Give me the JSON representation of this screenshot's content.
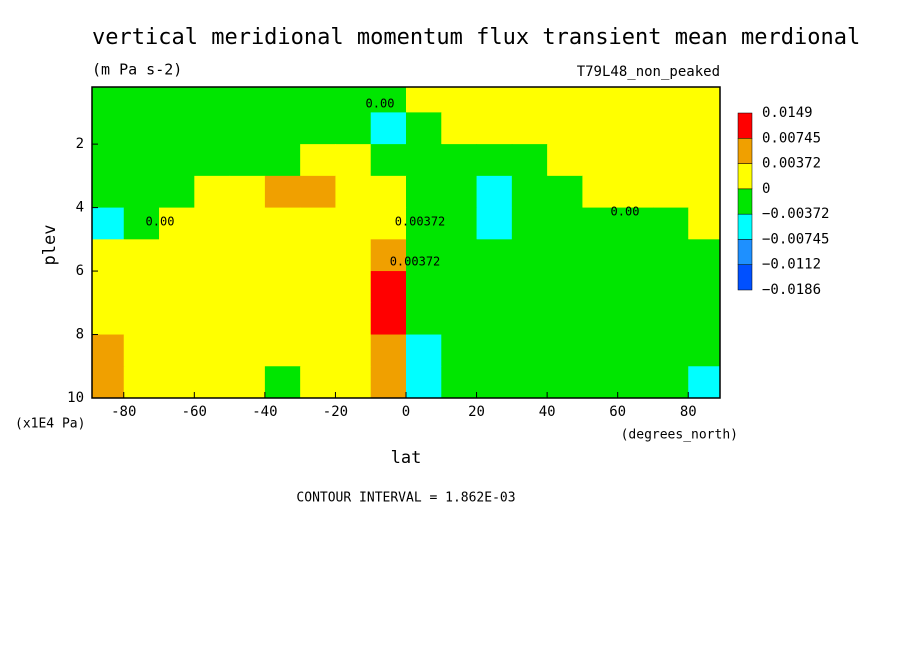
{
  "chart_data": {
    "type": "contour",
    "title": "vertical meridional momentum flux transient mean merdional",
    "subtitle": "(m Pa s-2)",
    "run_label": "T79L48_non_peaked",
    "xlabel": "lat",
    "ylabel": "plev",
    "x_unit_label": "(degrees_north)",
    "y_unit_label": "(x1E4 Pa)",
    "footer": "CONTOUR INTERVAL = 1.862E-03",
    "annotations": [
      "0.00",
      "0.00",
      "0.00",
      "0.00372",
      "0.00372"
    ],
    "x": [
      -85,
      -75,
      -65,
      -55,
      -45,
      -35,
      -25,
      -15,
      -5,
      5,
      15,
      25,
      35,
      45,
      55,
      65,
      75,
      85
    ],
    "y": [
      0.5,
      1.5,
      2.5,
      3.5,
      4.5,
      5.5,
      6.5,
      7.5,
      8.5,
      9.5
    ],
    "z": [
      [
        -0.0015,
        -0.0015,
        -0.0015,
        -0.0015,
        -0.0015,
        -0.0015,
        -0.0015,
        -0.0015,
        -0.0015,
        0.0015,
        0.0015,
        0.0015,
        0.0015,
        0.0015,
        0.0015,
        0.0015,
        0.0015,
        0.0015
      ],
      [
        -0.0015,
        -0.0015,
        -0.0015,
        -0.0015,
        -0.0015,
        -0.0015,
        -0.0015,
        -0.0015,
        -0.005,
        -0.0015,
        0.0015,
        0.0015,
        0.0015,
        0.0015,
        0.0015,
        0.0015,
        0.0015,
        0.0015
      ],
      [
        -0.0015,
        -0.0015,
        -0.0015,
        -0.0015,
        -0.0015,
        -0.0015,
        0.0015,
        0.0015,
        -0.0015,
        -0.0015,
        -0.0015,
        -0.0015,
        -0.0015,
        0.0015,
        0.0015,
        0.0015,
        0.0015,
        0.0015
      ],
      [
        -0.0015,
        -0.0015,
        -0.0015,
        0.0015,
        0.0015,
        0.005,
        0.005,
        0.0015,
        0.0015,
        -0.0015,
        -0.0015,
        -0.005,
        -0.0015,
        -0.0015,
        0.0015,
        0.0015,
        0.0015,
        0.0015
      ],
      [
        -0.005,
        -0.0015,
        0.0015,
        0.0015,
        0.0015,
        0.0015,
        0.0015,
        0.0015,
        0.0015,
        -0.0015,
        -0.0015,
        -0.005,
        -0.0015,
        -0.0015,
        -0.0015,
        -0.0015,
        -0.0015,
        0.0015
      ],
      [
        0.0015,
        0.0015,
        0.0015,
        0.0015,
        0.0015,
        0.0015,
        0.0015,
        0.0015,
        0.005,
        -0.0015,
        -0.0015,
        -0.0015,
        -0.0015,
        -0.0015,
        -0.0015,
        -0.0015,
        -0.0015,
        -0.0015
      ],
      [
        0.0015,
        0.0015,
        0.0015,
        0.0015,
        0.0015,
        0.0015,
        0.0015,
        0.0015,
        0.01,
        -0.0015,
        -0.0015,
        -0.0015,
        -0.0015,
        -0.0015,
        -0.0015,
        -0.0015,
        -0.0015,
        -0.0015
      ],
      [
        0.0015,
        0.0015,
        0.0015,
        0.0015,
        0.0015,
        0.0015,
        0.0015,
        0.0015,
        0.01,
        -0.0015,
        -0.0015,
        -0.0015,
        -0.0015,
        -0.0015,
        -0.0015,
        -0.0015,
        -0.0015,
        -0.0015
      ],
      [
        0.005,
        0.0015,
        0.0015,
        0.0015,
        0.0015,
        0.0015,
        0.0015,
        0.0015,
        0.005,
        -0.005,
        -0.0015,
        -0.0015,
        -0.0015,
        -0.0015,
        -0.0015,
        -0.0015,
        -0.0015,
        -0.0015
      ],
      [
        0.005,
        0.0015,
        0.0015,
        0.0015,
        0.0015,
        -0.0015,
        0.0015,
        0.0015,
        0.005,
        -0.005,
        -0.0015,
        -0.0015,
        -0.0015,
        -0.0015,
        -0.0015,
        -0.0015,
        -0.0015,
        -0.005
      ]
    ],
    "levels": [
      {
        "value": -0.0186,
        "label": "−0.0186"
      },
      {
        "value": -0.0112,
        "label": "−0.0112"
      },
      {
        "value": -0.00745,
        "label": "−0.00745"
      },
      {
        "value": -0.00372,
        "label": "−0.00372"
      },
      0,
      0.00372,
      0.00745,
      0.0149
    ],
    "colors": [
      "#0050ff",
      "#1e90ff",
      "#00ffff",
      "#00e600",
      "#ffff00",
      "#f0a000",
      "#ff0000"
    ],
    "xlim": [
      -89,
      89
    ],
    "xticks": [
      -80,
      -60,
      -40,
      -20,
      0,
      20,
      40,
      60,
      80
    ],
    "ylim": [
      10,
      0.2
    ],
    "yticks": [
      2,
      4,
      6,
      8,
      10
    ]
  }
}
